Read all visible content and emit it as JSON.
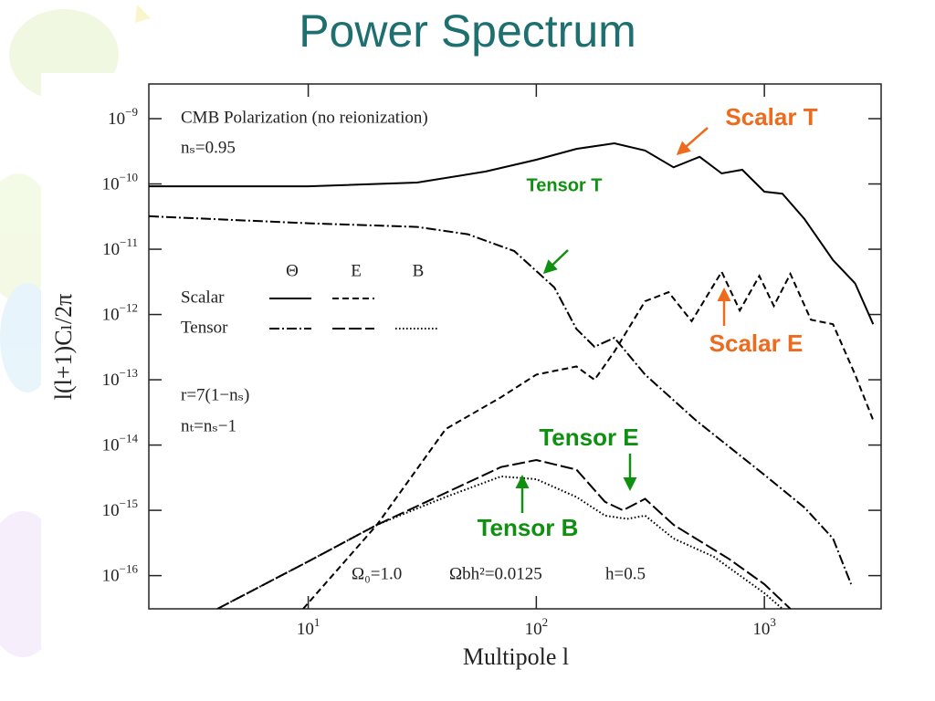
{
  "chart_data": {
    "type": "line",
    "title": "Power Spectrum",
    "xlabel": "Multipole l",
    "ylabel": "l(l+1)Cₗ/2π",
    "log_x": true,
    "log_y": true,
    "xlim": [
      2,
      3250
    ],
    "ylim": [
      3.1e-17,
      3.4e-09
    ],
    "xticks": [
      {
        "value": 10,
        "label": "10",
        "exponent": "1"
      },
      {
        "value": 100,
        "label": "10",
        "exponent": "2"
      },
      {
        "value": 1000,
        "label": "10",
        "exponent": "3"
      }
    ],
    "yticks": [
      {
        "value": 1e-09,
        "label": "10",
        "exponent": "−9"
      },
      {
        "value": 1e-10,
        "label": "10",
        "exponent": "−10"
      },
      {
        "value": 1e-11,
        "label": "10",
        "exponent": "−11"
      },
      {
        "value": 1e-12,
        "label": "10",
        "exponent": "−12"
      },
      {
        "value": 1e-13,
        "label": "10",
        "exponent": "−13"
      },
      {
        "value": 1e-14,
        "label": "10",
        "exponent": "−14"
      },
      {
        "value": 1e-15,
        "label": "10",
        "exponent": "−15"
      },
      {
        "value": 1e-16,
        "label": "10",
        "exponent": "−16"
      }
    ],
    "annotations": [
      "CMB Polarization (no reionization)",
      "nₛ=0.95",
      "r=7(1−nₛ)",
      "nₜ=nₛ−1",
      "Ω₀=1.0",
      "Ωbh²=0.0125",
      "h=0.5"
    ],
    "legend": {
      "columns": [
        "Θ",
        "E",
        "B"
      ],
      "rows": [
        "Scalar",
        "Tensor"
      ]
    },
    "series": [
      {
        "name": "Scalar T",
        "color": "#000000",
        "dash": "solid",
        "x": [
          2,
          10,
          30,
          60,
          100,
          150,
          220,
          300,
          400,
          520,
          650,
          800,
          1000,
          1200,
          1500,
          2000,
          2500,
          3000
        ],
        "values": [
          9.2e-11,
          9.2e-11,
          1.05e-10,
          1.55e-10,
          2.35e-10,
          3.45e-10,
          4.2e-10,
          3.25e-10,
          1.8e-10,
          2.6e-10,
          1.45e-10,
          1.65e-10,
          7.6e-11,
          7.1e-11,
          2.9e-11,
          6.8e-12,
          3e-12,
          7.1e-13
        ]
      },
      {
        "name": "Scalar E",
        "color": "#000000",
        "dash": "dashed",
        "x": [
          9.5,
          20,
          40,
          70,
          100,
          150,
          180,
          220,
          300,
          380,
          480,
          650,
          780,
          950,
          1100,
          1300,
          1600,
          2000,
          2500,
          3000
        ],
        "values": [
          3.1e-17,
          6e-16,
          1.75e-14,
          5.4e-14,
          1.2e-13,
          1.6e-13,
          1e-13,
          2.7e-13,
          1.6e-12,
          2.2e-12,
          7.9e-13,
          4.5e-12,
          1.15e-12,
          3.9e-12,
          1.35e-12,
          4.2e-12,
          8.3e-13,
          7.1e-13,
          1.2e-13,
          2.4e-14
        ]
      },
      {
        "name": "Tensor T",
        "color": "#000000",
        "dash": "dashdot",
        "x": [
          2,
          10,
          30,
          50,
          80,
          120,
          150,
          180,
          220,
          300,
          500,
          1000,
          1500,
          2000,
          2400
        ],
        "values": [
          3.2e-11,
          2.5e-11,
          2.2e-11,
          1.7e-11,
          9.4e-12,
          2.6e-12,
          6e-13,
          3.2e-13,
          4.4e-13,
          1.2e-13,
          2.4e-14,
          3.5e-15,
          1.1e-15,
          3.7e-16,
          7.4e-17
        ]
      },
      {
        "name": "Tensor E",
        "color": "#000000",
        "dash": "longdash",
        "x": [
          4,
          10,
          20,
          40,
          70,
          100,
          150,
          200,
          240,
          300,
          400,
          500,
          700,
          1000,
          1300
        ],
        "values": [
          3.1e-17,
          1.65e-16,
          6e-16,
          1.85e-15,
          4.6e-15,
          5.9e-15,
          4.2e-15,
          1.35e-15,
          1e-15,
          1.5e-15,
          6e-16,
          3.7e-16,
          1.8e-16,
          7.4e-17,
          3.1e-17
        ]
      },
      {
        "name": "Tensor B",
        "color": "#000000",
        "dash": "dotted",
        "x": [
          4,
          10,
          20,
          40,
          70,
          100,
          150,
          200,
          250,
          300,
          400,
          600,
          1000,
          1200
        ],
        "values": [
          3.1e-17,
          1.65e-16,
          6e-16,
          1.6e-15,
          3.3e-15,
          3e-15,
          1.6e-15,
          8.3e-16,
          7.4e-16,
          8.3e-16,
          3.7e-16,
          1.95e-16,
          5.4e-17,
          3.1e-17
        ]
      }
    ]
  }
}
